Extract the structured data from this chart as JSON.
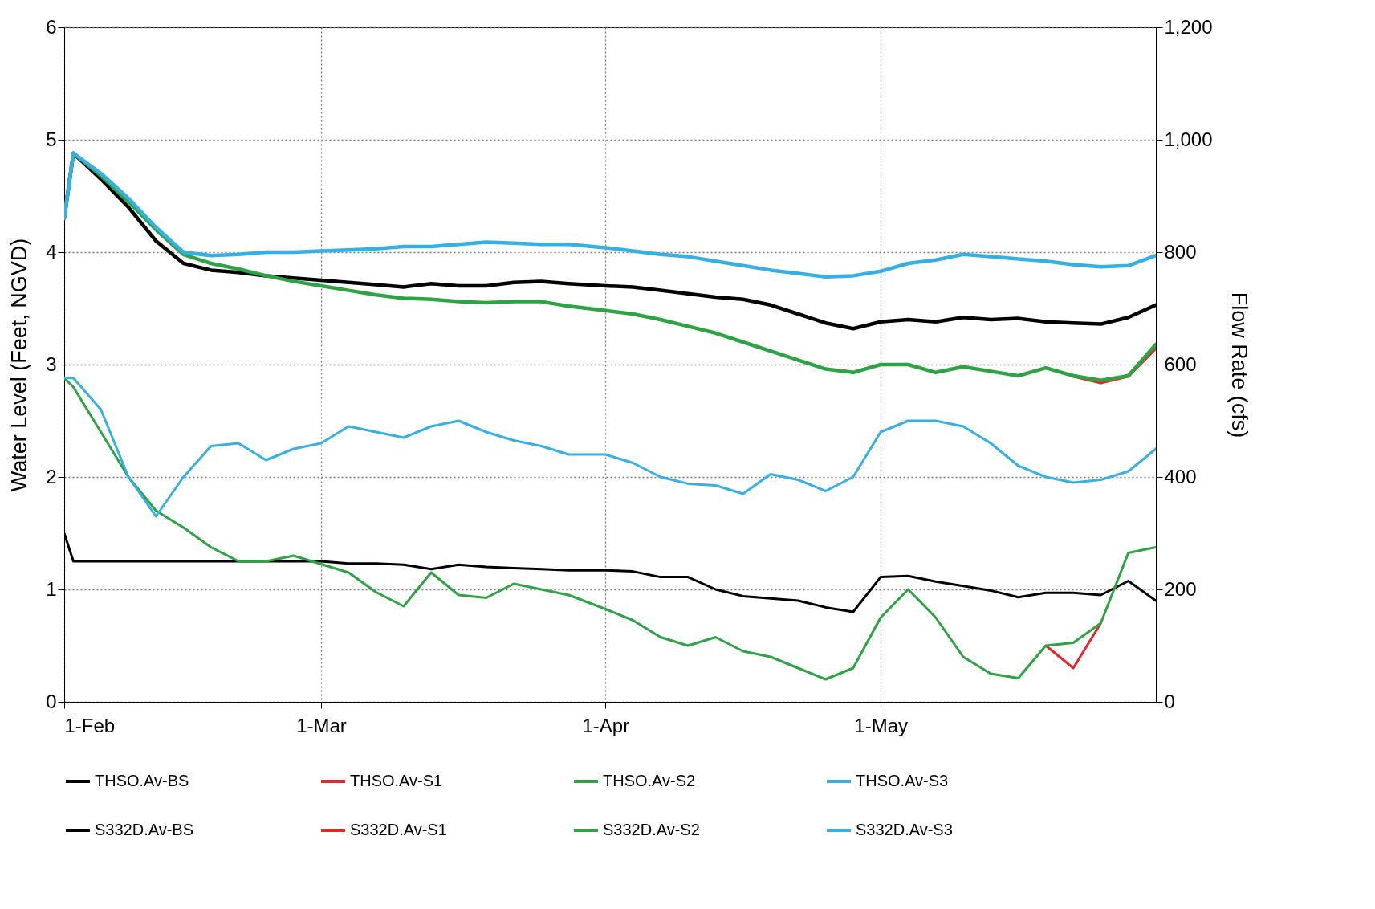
{
  "chart_data": {
    "type": "line",
    "xlabel": null,
    "ylabel": "Water Level (Feet, NGVD)",
    "y2label": "Flow Rate (cfs)",
    "x": [
      "--02-01",
      "--02-02",
      "--02-05",
      "--02-08",
      "--02-11",
      "--02-14",
      "--02-17",
      "--02-20",
      "--02-23",
      "--02-26",
      "--03-01",
      "--03-04",
      "--03-07",
      "--03-10",
      "--03-13",
      "--03-16",
      "--03-19",
      "--03-22",
      "--03-25",
      "--03-28",
      "--04-01",
      "--04-04",
      "--04-07",
      "--04-10",
      "--04-13",
      "--04-16",
      "--04-19",
      "--04-22",
      "--04-25",
      "--04-28",
      "--05-01",
      "--05-04",
      "--05-07",
      "--05-10",
      "--05-13",
      "--05-16",
      "--05-19",
      "--05-22",
      "--05-25",
      "--05-28",
      "--05-31"
    ],
    "xlim": [
      "--02-01",
      "--05-31"
    ],
    "xticks": [
      {
        "value": "--02-01",
        "label": "1-Feb"
      },
      {
        "value": "--03-01",
        "label": "1-Mar"
      },
      {
        "value": "--04-01",
        "label": "1-Apr"
      },
      {
        "value": "--05-01",
        "label": "1-May"
      }
    ],
    "ylim": [
      0,
      6
    ],
    "yticks": [
      0,
      1,
      2,
      3,
      4,
      5,
      6
    ],
    "y2lim": [
      0,
      1200
    ],
    "y2ticks": [
      0,
      200,
      400,
      600,
      800,
      {
        "value": 1000,
        "label": "1,000"
      },
      {
        "value": 1200,
        "label": "1,200"
      }
    ],
    "grid": true,
    "legend": "bottom",
    "series": [
      {
        "name": "THSO.Av-BS",
        "color": "#000000",
        "values": [
          4.3,
          4.88,
          4.65,
          4.4,
          4.1,
          3.9,
          3.84,
          3.82,
          3.79,
          3.77,
          3.75,
          3.73,
          3.71,
          3.69,
          3.72,
          3.7,
          3.7,
          3.73,
          3.74,
          3.72,
          3.7,
          3.69,
          3.66,
          3.63,
          3.6,
          3.58,
          3.53,
          3.45,
          3.37,
          3.32,
          3.38,
          3.4,
          3.38,
          3.42,
          3.4,
          3.41,
          3.38,
          3.37,
          3.36,
          3.42,
          3.53
        ]
      },
      {
        "name": "THSO.Av-S1",
        "color": "#e8262a",
        "values": [
          null,
          null,
          null,
          null,
          null,
          null,
          null,
          null,
          null,
          null,
          null,
          null,
          null,
          null,
          null,
          null,
          null,
          null,
          null,
          null,
          null,
          null,
          null,
          null,
          null,
          null,
          null,
          null,
          null,
          null,
          null,
          null,
          null,
          null,
          null,
          null,
          null,
          2.9,
          2.84,
          2.9,
          3.15
        ]
      },
      {
        "name": "THSO.Av-S2",
        "color": "#2ca443",
        "values": [
          4.3,
          4.88,
          4.68,
          4.45,
          4.2,
          3.98,
          3.9,
          3.85,
          3.79,
          3.74,
          3.7,
          3.66,
          3.62,
          3.59,
          3.58,
          3.56,
          3.55,
          3.56,
          3.56,
          3.52,
          3.48,
          3.45,
          3.4,
          3.34,
          3.28,
          3.2,
          3.12,
          3.04,
          2.96,
          2.93,
          3.0,
          3.0,
          2.93,
          2.98,
          2.94,
          2.9,
          2.97,
          2.9,
          2.86,
          2.9,
          3.18
        ]
      },
      {
        "name": "THSO.Av-S3",
        "color": "#35b0e5",
        "values": [
          4.3,
          4.88,
          4.7,
          4.48,
          4.22,
          4.0,
          3.97,
          3.98,
          4.0,
          4.0,
          4.01,
          4.02,
          4.03,
          4.05,
          4.05,
          4.07,
          4.09,
          4.08,
          4.07,
          4.07,
          4.04,
          4.01,
          3.98,
          3.96,
          3.92,
          3.88,
          3.84,
          3.81,
          3.78,
          3.79,
          3.83,
          3.9,
          3.93,
          3.98,
          3.96,
          3.94,
          3.92,
          3.89,
          3.87,
          3.88,
          3.97
        ]
      },
      {
        "name": "S332D.Av-BS",
        "color": "#000000",
        "axis": "y2",
        "values": [
          300,
          250,
          250,
          250,
          250,
          250,
          250,
          250,
          250,
          250,
          250,
          246,
          246,
          244,
          236,
          244,
          240,
          238,
          236,
          234,
          234,
          232,
          222,
          222,
          200,
          188,
          184,
          180,
          168,
          160,
          222,
          224,
          214,
          206,
          198,
          186,
          194,
          194,
          190,
          215,
          180
        ]
      },
      {
        "name": "S332D.Av-S1",
        "color": "#e8262a",
        "axis": "y2",
        "values": [
          null,
          null,
          null,
          null,
          null,
          null,
          null,
          null,
          null,
          null,
          null,
          null,
          null,
          null,
          null,
          null,
          null,
          null,
          null,
          null,
          null,
          null,
          null,
          null,
          null,
          null,
          null,
          null,
          null,
          null,
          null,
          null,
          null,
          null,
          null,
          null,
          100,
          60,
          140,
          null,
          null
        ]
      },
      {
        "name": "S332D.Av-S2",
        "color": "#2ca443",
        "axis": "y2",
        "values": [
          576,
          560,
          480,
          400,
          340,
          310,
          275,
          250,
          250,
          260,
          245,
          230,
          195,
          170,
          230,
          190,
          185,
          210,
          200,
          190,
          165,
          145,
          115,
          100,
          115,
          90,
          80,
          60,
          40,
          60,
          150,
          200,
          150,
          80,
          50,
          42,
          100,
          105,
          140,
          265,
          275
        ]
      },
      {
        "name": "S332D.Av-S3",
        "color": "#35b0e5",
        "axis": "y2",
        "values": [
          576,
          576,
          520,
          400,
          330,
          400,
          455,
          460,
          430,
          450,
          460,
          490,
          480,
          470,
          490,
          500,
          480,
          465,
          455,
          440,
          440,
          425,
          400,
          388,
          385,
          370,
          405,
          395,
          375,
          400,
          480,
          500,
          500,
          490,
          460,
          420,
          400,
          390,
          395,
          410,
          450
        ]
      }
    ]
  }
}
